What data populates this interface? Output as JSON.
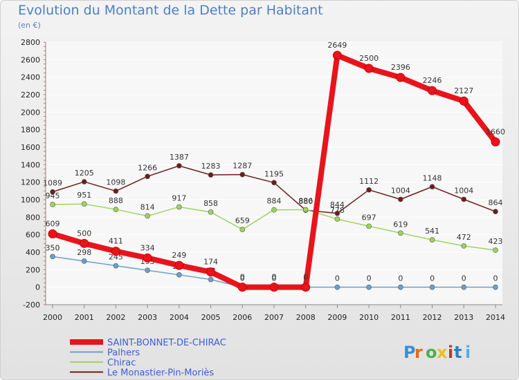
{
  "title": "Evolution du Montant de la Dette par Habitant",
  "subtitle": "(en €)",
  "brand": "Proxiti",
  "chart_data": {
    "type": "line",
    "x": [
      "2000",
      "2001",
      "2002",
      "2003",
      "2004",
      "2005",
      "2006",
      "2007",
      "2008",
      "2009",
      "2010",
      "2011",
      "2012",
      "2013",
      "2014"
    ],
    "ylim": [
      -200,
      2800
    ],
    "yticks": [
      -200,
      0,
      200,
      400,
      600,
      800,
      1000,
      1200,
      1400,
      1600,
      1800,
      2000,
      2200,
      2400,
      2600,
      2800
    ],
    "grid": true,
    "legend_position": "bottom-left",
    "series": [
      {
        "name": "SAINT-BONNET-DE-CHIRAC",
        "color": "#e8141c",
        "values": [
          609,
          500,
          411,
          334,
          249,
          174,
          0,
          0,
          0,
          2649,
          2500,
          2396,
          2246,
          2127,
          1660
        ]
      },
      {
        "name": "Palhers",
        "color": "#6a9fcf",
        "values": [
          350,
          298,
          245,
          193,
          141,
          88,
          0,
          0,
          0,
          0,
          0,
          0,
          0,
          0,
          0
        ]
      },
      {
        "name": "Chirac",
        "color": "#9ed45f",
        "values": [
          945,
          951,
          888,
          814,
          917,
          858,
          659,
          884,
          886,
          778,
          697,
          619,
          541,
          472,
          423
        ]
      },
      {
        "name": "Le Monastier-Pin-Moriès",
        "color": "#6e1c1c",
        "values": [
          1089,
          1205,
          1098,
          1266,
          1387,
          1283,
          1287,
          1195,
          880,
          844,
          1112,
          1004,
          1148,
          1004,
          864
        ]
      }
    ]
  }
}
